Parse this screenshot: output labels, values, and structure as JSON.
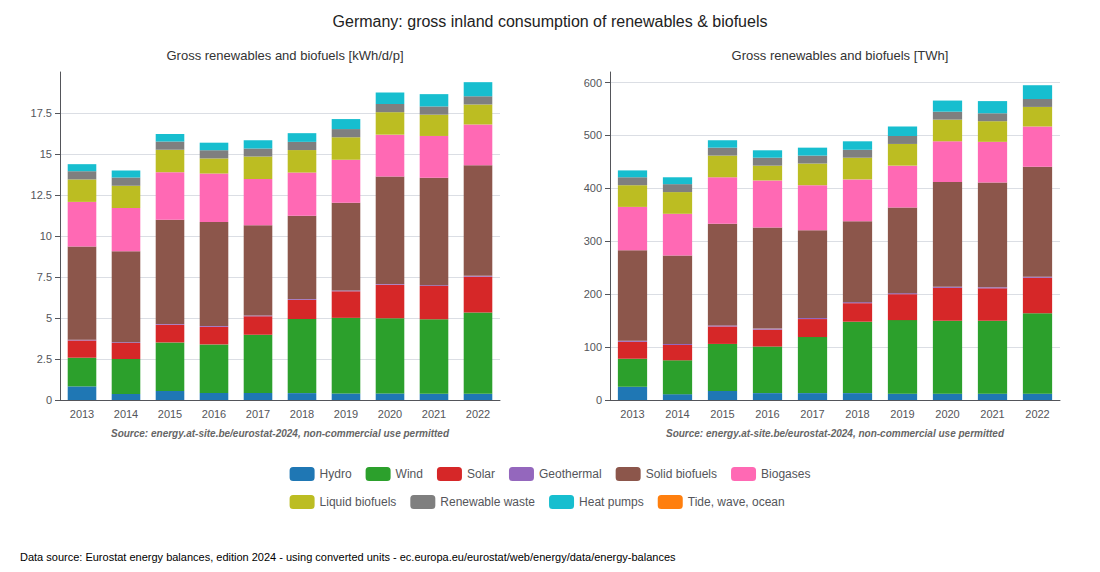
{
  "title": "Germany: gross inland consumption of renewables & biofuels",
  "footer": "Data source: Eurostat energy balances, edition 2024 - using converted units - ec.europa.eu/eurostat/web/energy/data/energy-balances",
  "legend": "bottom",
  "chart_data": [
    {
      "type": "bar",
      "stacked": true,
      "grid": true,
      "subtitle": "Gross renewables and biofuels [kWh/d/p]",
      "annotations": [
        "Source: energy.at-site.be/eurostat-2024, non-commercial use permitted"
      ],
      "categories": [
        "2013",
        "2014",
        "2015",
        "2016",
        "2017",
        "2018",
        "2019",
        "2020",
        "2021",
        "2022"
      ],
      "ylim": [
        0,
        20
      ],
      "yticks": [
        0,
        2.5,
        5,
        7.5,
        10,
        12.5,
        15,
        17.5
      ],
      "series": [
        {
          "name": "Hydro",
          "color": "#1f77b4",
          "values": [
            0.83,
            0.37,
            0.55,
            0.43,
            0.43,
            0.42,
            0.4,
            0.4,
            0.38,
            0.38
          ]
        },
        {
          "name": "Wind",
          "color": "#2ca02c",
          "values": [
            1.75,
            2.13,
            2.96,
            2.96,
            3.55,
            4.52,
            4.61,
            4.58,
            4.55,
            4.96
          ]
        },
        {
          "name": "Solar",
          "color": "#d62728",
          "values": [
            1.05,
            0.97,
            1.08,
            1.07,
            1.12,
            1.17,
            1.62,
            2.05,
            2.02,
            2.18
          ]
        },
        {
          "name": "Geothermal",
          "color": "#9467bd",
          "values": [
            0.05,
            0.05,
            0.05,
            0.05,
            0.05,
            0.05,
            0.05,
            0.05,
            0.05,
            0.05
          ]
        },
        {
          "name": "Solid biofuels",
          "color": "#8c564b",
          "values": [
            5.68,
            5.55,
            6.35,
            6.35,
            5.5,
            5.08,
            5.35,
            6.55,
            6.55,
            6.75
          ]
        },
        {
          "name": "Biogases",
          "color": "#ff69b4",
          "values": [
            2.72,
            2.63,
            2.9,
            2.95,
            2.82,
            2.63,
            2.62,
            2.55,
            2.55,
            2.48
          ]
        },
        {
          "name": "Liquid biofuels",
          "color": "#bcbd22",
          "values": [
            1.37,
            1.37,
            1.37,
            0.92,
            1.37,
            1.37,
            1.37,
            1.37,
            1.3,
            1.22
          ]
        },
        {
          "name": "Renewable waste",
          "color": "#7f7f7f",
          "values": [
            0.5,
            0.5,
            0.5,
            0.5,
            0.5,
            0.5,
            0.5,
            0.5,
            0.5,
            0.5
          ]
        },
        {
          "name": "Heat pumps",
          "color": "#17becf",
          "values": [
            0.43,
            0.43,
            0.46,
            0.46,
            0.5,
            0.53,
            0.61,
            0.7,
            0.75,
            0.86
          ]
        },
        {
          "name": "Tide, wave, ocean",
          "color": "#ff7f0e",
          "values": [
            0.0,
            0.0,
            0.0,
            0.0,
            0.0,
            0.0,
            0.0,
            0.0,
            0.0,
            0.0
          ]
        }
      ]
    },
    {
      "type": "bar",
      "stacked": true,
      "grid": true,
      "subtitle": "Gross renewables and biofuels [TWh]",
      "annotations": [
        "Source: energy.at-site.be/eurostat-2024, non-commercial use permitted"
      ],
      "categories": [
        "2013",
        "2014",
        "2015",
        "2016",
        "2017",
        "2018",
        "2019",
        "2020",
        "2021",
        "2022"
      ],
      "ylim": [
        0,
        620
      ],
      "yticks": [
        0,
        100,
        200,
        300,
        400,
        500,
        600
      ],
      "series": [
        {
          "name": "Hydro",
          "color": "#1f77b4",
          "values": [
            25,
            11,
            17,
            13,
            13,
            13,
            12,
            12,
            12,
            12
          ]
        },
        {
          "name": "Wind",
          "color": "#2ca02c",
          "values": [
            53,
            64,
            89,
            88,
            106,
            135,
            139,
            138,
            138,
            152
          ]
        },
        {
          "name": "Solar",
          "color": "#d62728",
          "values": [
            32,
            29,
            33,
            32,
            34,
            35,
            49,
            62,
            61,
            67
          ]
        },
        {
          "name": "Geothermal",
          "color": "#9467bd",
          "values": [
            2,
            2,
            2,
            2,
            2,
            2,
            2,
            2,
            2,
            2
          ]
        },
        {
          "name": "Solid biofuels",
          "color": "#8c564b",
          "values": [
            171,
            167,
            192,
            191,
            166,
            153,
            162,
            198,
            198,
            208
          ]
        },
        {
          "name": "Biogases",
          "color": "#ff69b4",
          "values": [
            82,
            79,
            88,
            89,
            85,
            79,
            79,
            77,
            77,
            76
          ]
        },
        {
          "name": "Liquid biofuels",
          "color": "#bcbd22",
          "values": [
            41,
            41,
            41,
            28,
            41,
            41,
            41,
            41,
            39,
            37
          ]
        },
        {
          "name": "Renewable waste",
          "color": "#7f7f7f",
          "values": [
            15,
            15,
            15,
            15,
            15,
            15,
            15,
            15,
            15,
            15
          ]
        },
        {
          "name": "Heat pumps",
          "color": "#17becf",
          "values": [
            13,
            13,
            14,
            14,
            15,
            16,
            18,
            21,
            23,
            26
          ]
        },
        {
          "name": "Tide, wave, ocean",
          "color": "#ff7f0e",
          "values": [
            0,
            0,
            0,
            0,
            0,
            0,
            0,
            0,
            0,
            0
          ]
        }
      ]
    }
  ]
}
